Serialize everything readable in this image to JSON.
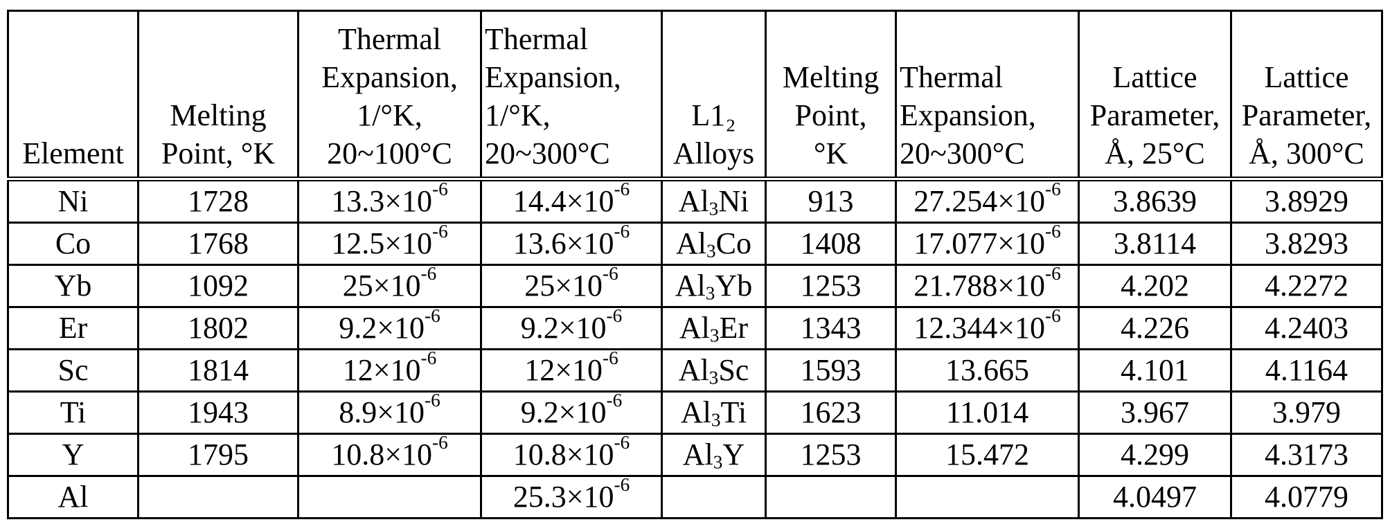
{
  "headers": [
    {
      "lines": [
        "Element"
      ],
      "align": "center"
    },
    {
      "lines": [
        "Melting",
        "Point, °K"
      ],
      "align": "center"
    },
    {
      "lines": [
        "Thermal",
        "Expansion,",
        "1/°K,",
        "20~100°C"
      ],
      "align": "center"
    },
    {
      "lines": [
        "Thermal",
        "Expansion,",
        "1/°K,",
        "20~300°C"
      ],
      "align": "left"
    },
    {
      "lines": [
        "L1₂",
        "Alloys"
      ],
      "align": "center"
    },
    {
      "lines": [
        "Melting",
        "Point,",
        "°K"
      ],
      "align": "center"
    },
    {
      "lines": [
        "Thermal",
        "Expansion,",
        "20~300°C"
      ],
      "align": "left"
    },
    {
      "lines": [
        "Lattice",
        "Parameter,",
        "Å, 25°C"
      ],
      "align": "center"
    },
    {
      "lines": [
        "Lattice",
        "Parameter,",
        "Å, 300°C"
      ],
      "align": "center"
    }
  ],
  "rows": [
    {
      "element": "Ni",
      "melting_point": "1728",
      "te_20_100": {
        "mant": "13.3×10",
        "exp": "-6"
      },
      "te_20_300": {
        "mant": "14.4×10",
        "exp": "-6"
      },
      "alloy": {
        "base": "Al",
        "sub": "3",
        "rest": "Ni"
      },
      "alloy_melting_point": "913",
      "alloy_te": {
        "mant": "27.254×10",
        "exp": "-6"
      },
      "lattice_25": "3.8639",
      "lattice_300": "3.8929"
    },
    {
      "element": "Co",
      "melting_point": "1768",
      "te_20_100": {
        "mant": "12.5×10",
        "exp": "-6"
      },
      "te_20_300": {
        "mant": "13.6×10",
        "exp": "-6"
      },
      "alloy": {
        "base": "Al",
        "sub": "3",
        "rest": "Co"
      },
      "alloy_melting_point": "1408",
      "alloy_te": {
        "mant": "17.077×10",
        "exp": "-6"
      },
      "lattice_25": "3.8114",
      "lattice_300": "3.8293"
    },
    {
      "element": "Yb",
      "melting_point": "1092",
      "te_20_100": {
        "mant": "25×10",
        "exp": "-6"
      },
      "te_20_300": {
        "mant": "25×10",
        "exp": "-6"
      },
      "alloy": {
        "base": "Al",
        "sub": "3",
        "rest": "Yb"
      },
      "alloy_melting_point": "1253",
      "alloy_te": {
        "mant": "21.788×10",
        "exp": "-6"
      },
      "lattice_25": "4.202",
      "lattice_300": "4.2272"
    },
    {
      "element": "Er",
      "melting_point": "1802",
      "te_20_100": {
        "mant": "9.2×10",
        "exp": "-6"
      },
      "te_20_300": {
        "mant": "9.2×10",
        "exp": "-6"
      },
      "alloy": {
        "base": "Al",
        "sub": "3",
        "rest": "Er"
      },
      "alloy_melting_point": "1343",
      "alloy_te": {
        "mant": "12.344×10",
        "exp": "-6"
      },
      "lattice_25": "4.226",
      "lattice_300": "4.2403"
    },
    {
      "element": "Sc",
      "melting_point": "1814",
      "te_20_100": {
        "mant": "12×10",
        "exp": "-6"
      },
      "te_20_300": {
        "mant": "12×10",
        "exp": "-6"
      },
      "alloy": {
        "base": "Al",
        "sub": "3",
        "rest": "Sc"
      },
      "alloy_melting_point": "1593",
      "alloy_te": {
        "mant": "13.665",
        "exp": ""
      },
      "lattice_25": "4.101",
      "lattice_300": "4.1164"
    },
    {
      "element": "Ti",
      "melting_point": "1943",
      "te_20_100": {
        "mant": "8.9×10",
        "exp": "-6"
      },
      "te_20_300": {
        "mant": "9.2×10",
        "exp": "-6"
      },
      "alloy": {
        "base": "Al",
        "sub": "3",
        "rest": "Ti"
      },
      "alloy_melting_point": "1623",
      "alloy_te": {
        "mant": "11.014",
        "exp": ""
      },
      "lattice_25": "3.967",
      "lattice_300": "3.979"
    },
    {
      "element": "Y",
      "melting_point": "1795",
      "te_20_100": {
        "mant": "10.8×10",
        "exp": "-6"
      },
      "te_20_300": {
        "mant": "10.8×10",
        "exp": "-6"
      },
      "alloy": {
        "base": "Al",
        "sub": "3",
        "rest": "Y"
      },
      "alloy_melting_point": "1253",
      "alloy_te": {
        "mant": "15.472",
        "exp": ""
      },
      "lattice_25": "4.299",
      "lattice_300": "4.3173"
    },
    {
      "element": "Al",
      "melting_point": "",
      "te_20_100": {
        "mant": "",
        "exp": ""
      },
      "te_20_300": {
        "mant": "25.3×10",
        "exp": "-6"
      },
      "alloy": {
        "base": "",
        "sub": "",
        "rest": ""
      },
      "alloy_melting_point": "",
      "alloy_te": {
        "mant": "",
        "exp": ""
      },
      "lattice_25": "4.0497",
      "lattice_300": "4.0779"
    }
  ]
}
